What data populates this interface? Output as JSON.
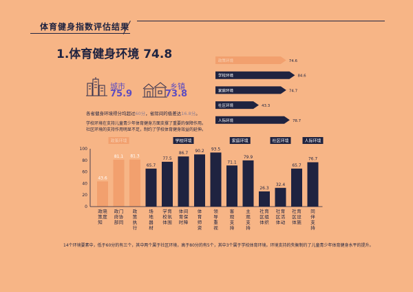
{
  "header": {
    "title": "体育健身指数评估结果"
  },
  "section": {
    "title": "1.体育健身环境",
    "score": "74.8"
  },
  "urban": {
    "label": "城市",
    "score": "75.9",
    "icon": "city-icon"
  },
  "rural": {
    "label": "乡镇",
    "score": "73.8",
    "icon": "town-icon"
  },
  "summary": {
    "prefix": "各省健身环境得分均超过",
    "pass": "60分",
    "mid": "，省际间的极差达",
    "range": "16.8分",
    "end": "。"
  },
  "note": {
    "line1": "学校环境在支持儿童青少年体育健身方面支撑了重要的保障作用。",
    "line2": "社区环境的支持作用明显不足，制约了学校体育健身效益的延伸。"
  },
  "footer": {
    "text": "14个环境要素中，低于60分的有三个，其中两个属于社区环境，高于80分的有5个，其中3个属于学校体育环境。环境支持的失衡制约了儿童青少年体育健身水平的提升。"
  },
  "colors": {
    "background": "#f7b586",
    "dark": "#1f2340",
    "accent": "#5d4cc0",
    "highlight": "#f2a06e"
  },
  "chart_data": [
    {
      "type": "bar",
      "orientation": "horizontal",
      "categories": [
        "政策环境",
        "学校环境",
        "家庭环境",
        "社区环境",
        "人际环境"
      ],
      "values": [
        74.6,
        84.6,
        74.7,
        43.3,
        78.7
      ],
      "xlim": [
        0,
        100
      ]
    },
    {
      "type": "bar",
      "categories": [
        "政策知晓度",
        "政府部门协同",
        "政策执行",
        "场地器材",
        "学校体育氛围",
        "体育时间保障",
        "体育师资",
        "领导重视",
        "客观支持",
        "主观支持",
        "社区体育组织",
        "社区体育活动",
        "社区体育设施",
        "同伴支持"
      ],
      "values": [
        43.6,
        81.1,
        81.3,
        65.7,
        77.5,
        86.7,
        90.2,
        93.5,
        71.1,
        79.9,
        26.3,
        32.4,
        65.7,
        76.7
      ],
      "groups": [
        {
          "name": "政策环境",
          "start": 0,
          "end": 2
        },
        {
          "name": "学校环境",
          "start": 3,
          "end": 7
        },
        {
          "name": "家庭环境",
          "start": 8,
          "end": 9
        },
        {
          "name": "社区环境",
          "start": 10,
          "end": 12
        },
        {
          "name": "人际环境",
          "start": 13,
          "end": 13
        }
      ],
      "highlighted": [
        0,
        1,
        2
      ],
      "ylim": [
        0,
        100
      ],
      "yticks": [
        0,
        20,
        40,
        60,
        80,
        100
      ]
    }
  ]
}
